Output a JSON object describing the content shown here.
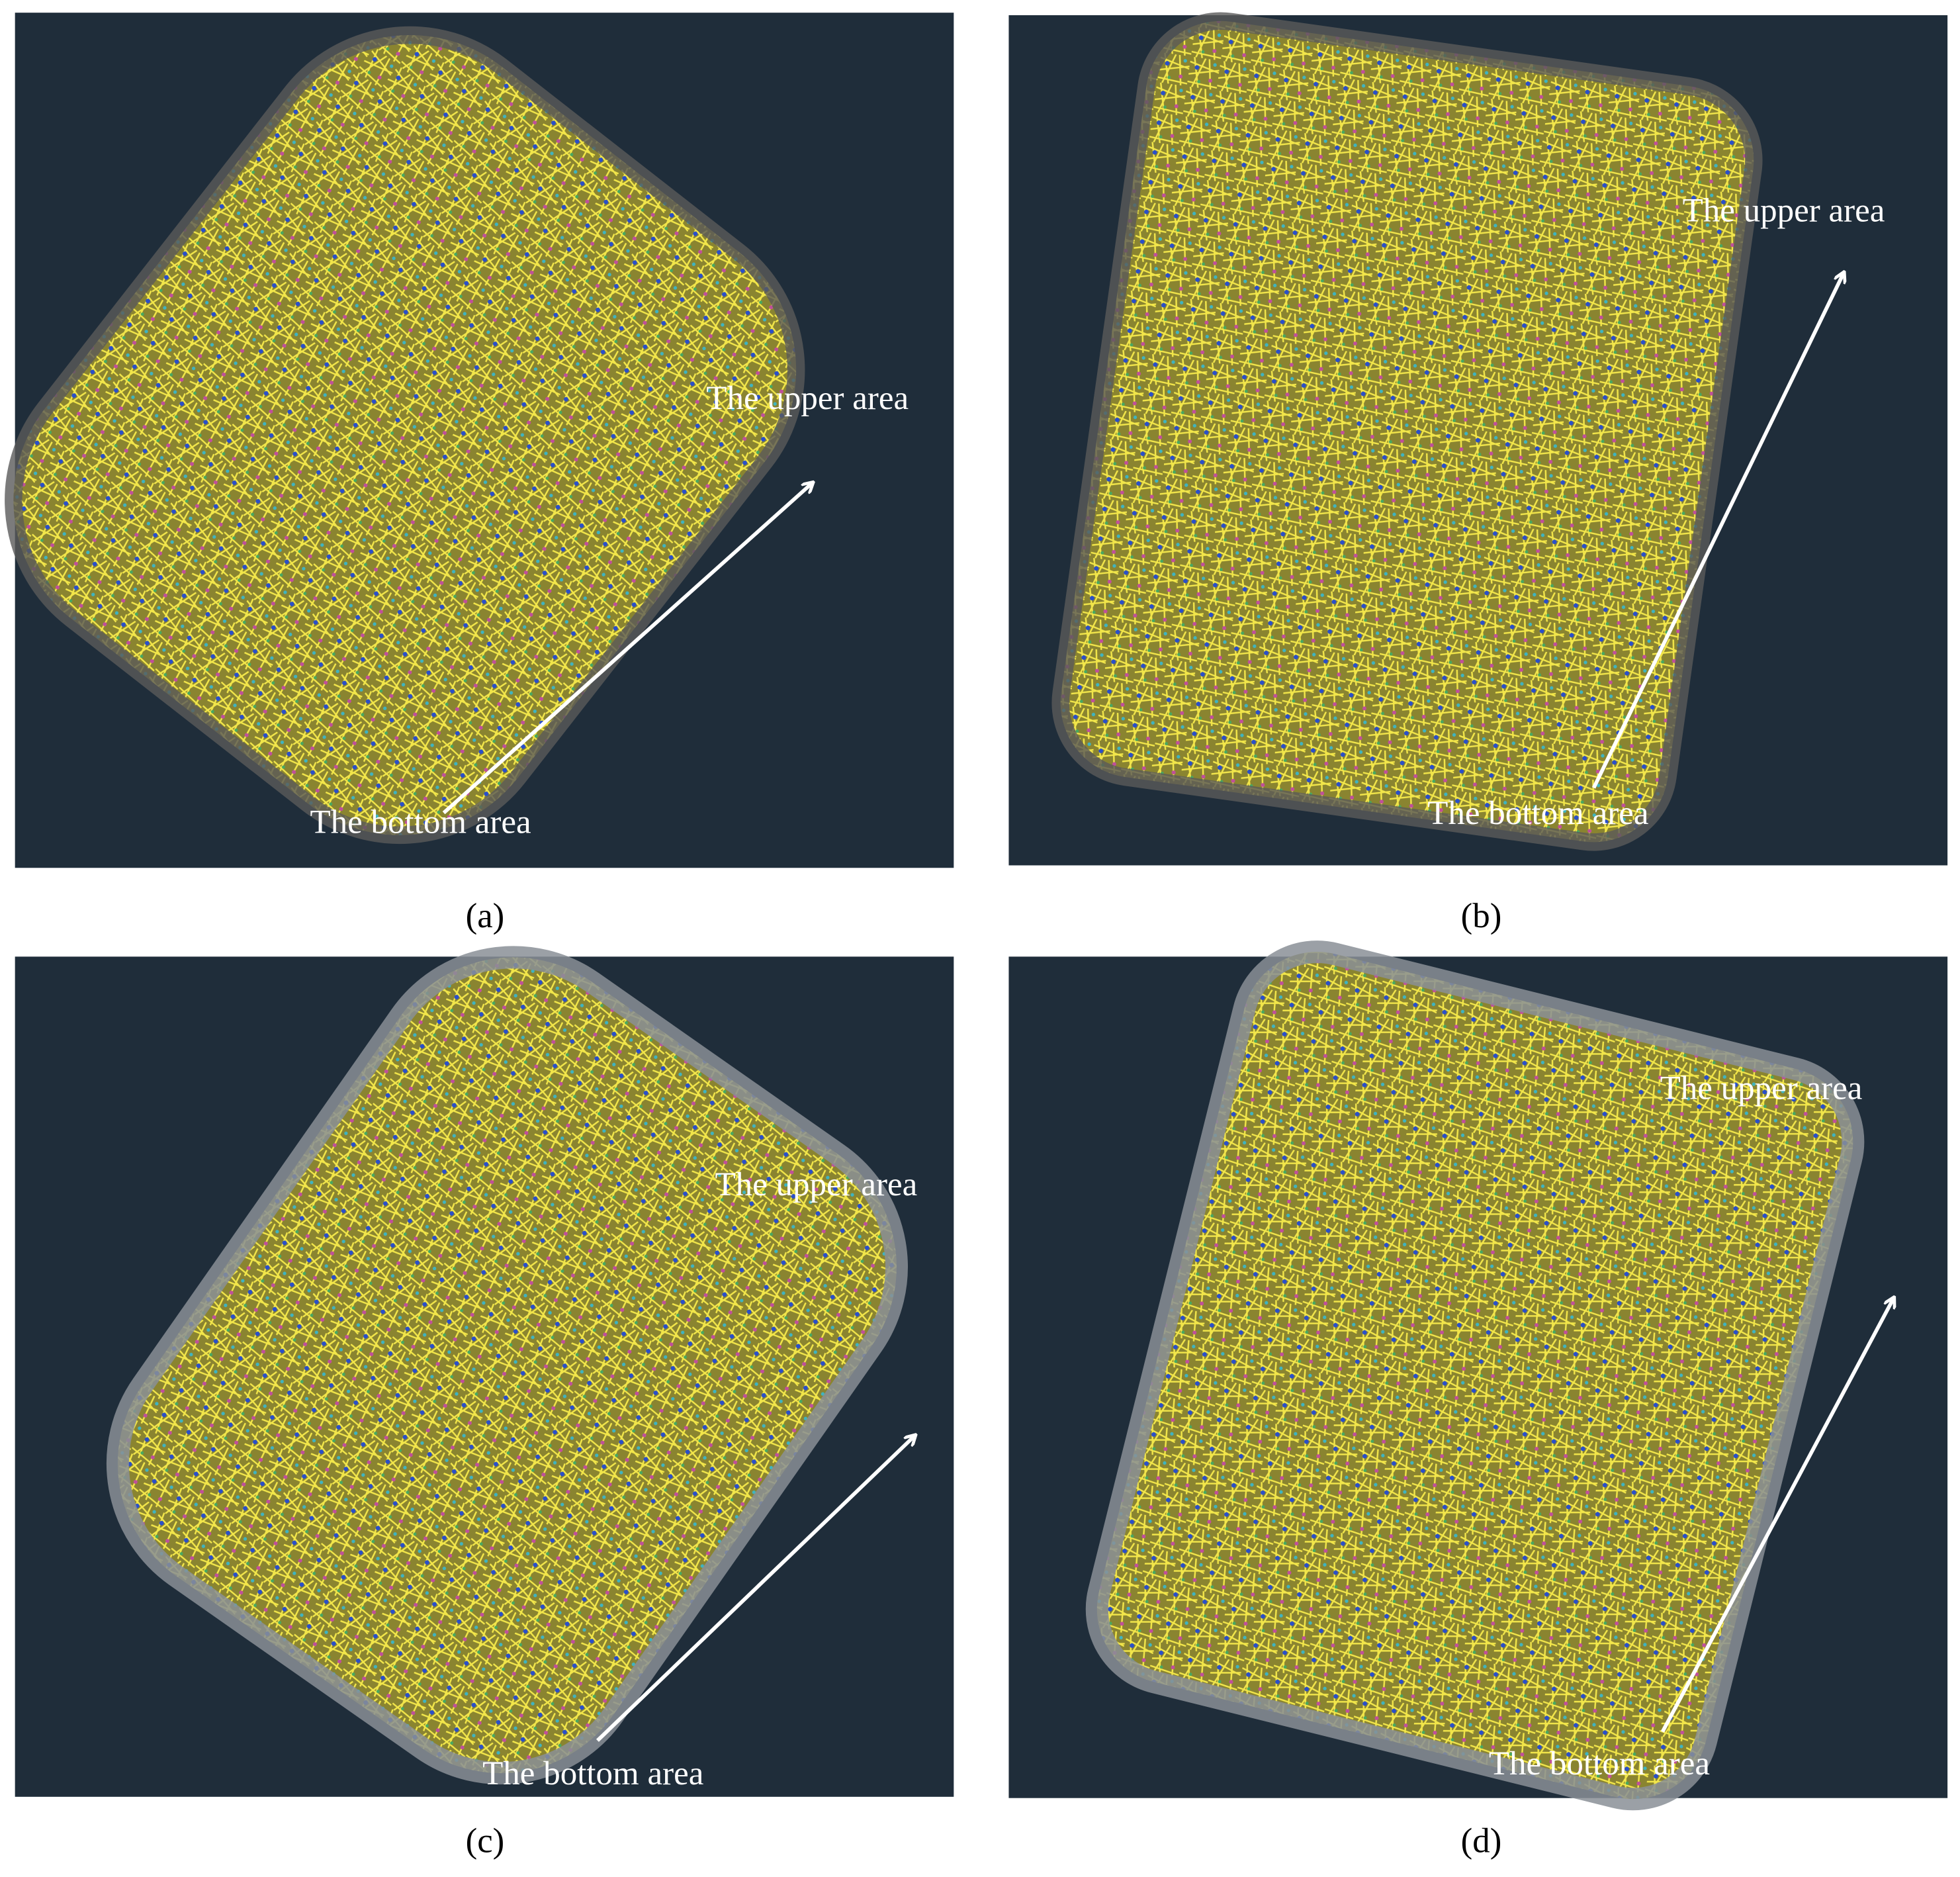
{
  "panels": [
    {
      "caption": "(a)",
      "upper_label": "The upper area",
      "bottom_label": "The bottom area"
    },
    {
      "caption": "(b)",
      "upper_label": "The upper area",
      "bottom_label": "The bottom area"
    },
    {
      "caption": "(c)",
      "upper_label": "The upper area",
      "bottom_label": "The bottom area"
    },
    {
      "caption": "(d)",
      "upper_label": "The upper area",
      "bottom_label": "The bottom area"
    }
  ]
}
